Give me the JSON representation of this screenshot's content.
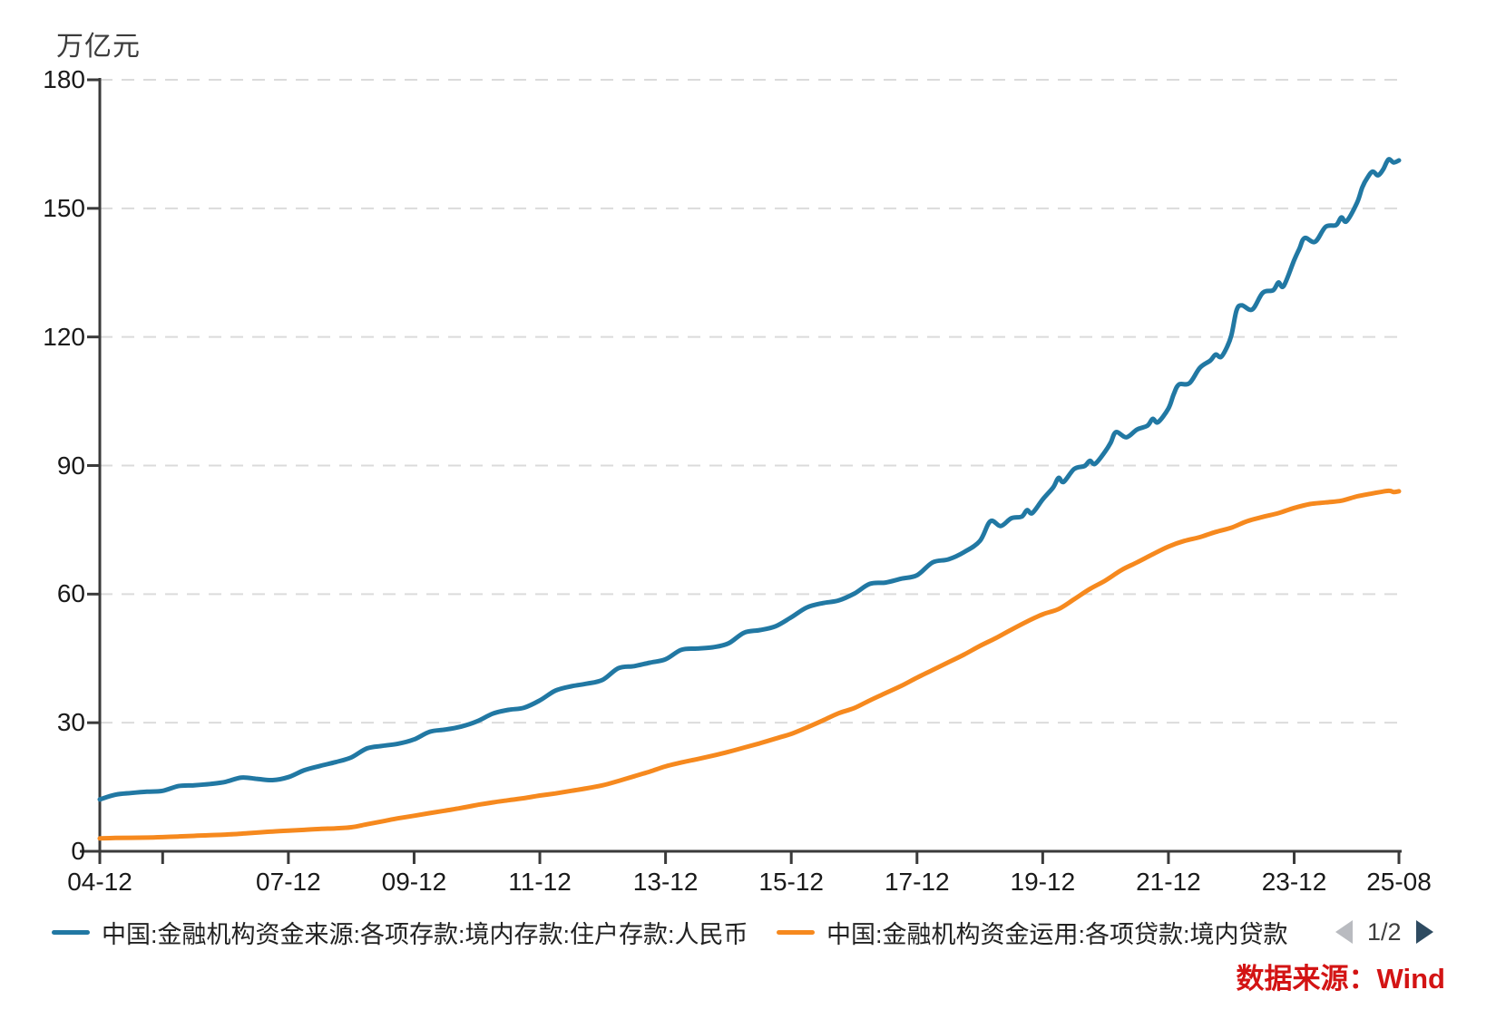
{
  "unit_label": "万亿元",
  "source_note": "数据来源：Wind",
  "pagination": {
    "label": "1/2",
    "prev_icon": "left-triangle-icon",
    "next_icon": "right-triangle-icon"
  },
  "colors": {
    "series_deposits": "#2178a3",
    "series_loans": "#f6891e",
    "grid": "#dbdbdb",
    "axis": "#3a3a3a",
    "tick_text": "#1a1a1a",
    "source_red": "#d31414",
    "pager_prev": "#b9bbc0",
    "pager_next": "#2e4b61"
  },
  "chart_data": {
    "type": "line",
    "title": "",
    "ylabel_unit": "万亿元",
    "ylim": [
      0,
      180
    ],
    "yticks": [
      0,
      30,
      60,
      90,
      120,
      150,
      180
    ],
    "grid": "dashed-horizontal",
    "legend_position": "bottom",
    "x_start": "04-12",
    "x_end": "25-08",
    "xticks": [
      {
        "t": "04-12",
        "label": "04-12"
      },
      {
        "t": "05-12",
        "label": ""
      },
      {
        "t": "07-12",
        "label": "07-12"
      },
      {
        "t": "09-12",
        "label": "09-12"
      },
      {
        "t": "11-12",
        "label": "11-12"
      },
      {
        "t": "13-12",
        "label": "13-12"
      },
      {
        "t": "15-12",
        "label": "15-12"
      },
      {
        "t": "17-12",
        "label": "17-12"
      },
      {
        "t": "19-12",
        "label": "19-12"
      },
      {
        "t": "21-12",
        "label": "21-12"
      },
      {
        "t": "23-12",
        "label": "23-12"
      },
      {
        "t": "25-08",
        "label": "25-08"
      }
    ],
    "series": [
      {
        "name": "中国:金融机构资金来源:各项存款:境内存款:住户存款:人民币",
        "color": "#2178a3",
        "points": [
          [
            "04-12",
            12.1
          ],
          [
            "05-03",
            13.2
          ],
          [
            "05-06",
            13.6
          ],
          [
            "05-09",
            13.9
          ],
          [
            "05-12",
            14.1
          ],
          [
            "06-03",
            15.2
          ],
          [
            "06-06",
            15.4
          ],
          [
            "06-09",
            15.7
          ],
          [
            "06-12",
            16.2
          ],
          [
            "07-03",
            17.2
          ],
          [
            "07-06",
            16.9
          ],
          [
            "07-09",
            16.6
          ],
          [
            "07-12",
            17.3
          ],
          [
            "08-03",
            18.9
          ],
          [
            "08-06",
            19.9
          ],
          [
            "08-09",
            20.8
          ],
          [
            "08-12",
            21.9
          ],
          [
            "09-03",
            24.0
          ],
          [
            "09-06",
            24.6
          ],
          [
            "09-09",
            25.1
          ],
          [
            "09-12",
            26.1
          ],
          [
            "10-03",
            27.9
          ],
          [
            "10-06",
            28.4
          ],
          [
            "10-09",
            29.1
          ],
          [
            "10-12",
            30.3
          ],
          [
            "11-03",
            32.1
          ],
          [
            "11-06",
            33.0
          ],
          [
            "11-09",
            33.5
          ],
          [
            "11-12",
            35.2
          ],
          [
            "12-03",
            37.5
          ],
          [
            "12-06",
            38.5
          ],
          [
            "12-09",
            39.1
          ],
          [
            "12-12",
            40.0
          ],
          [
            "13-03",
            42.7
          ],
          [
            "13-06",
            43.2
          ],
          [
            "13-09",
            44.0
          ],
          [
            "13-12",
            44.8
          ],
          [
            "14-03",
            47.0
          ],
          [
            "14-06",
            47.3
          ],
          [
            "14-09",
            47.6
          ],
          [
            "14-12",
            48.5
          ],
          [
            "15-03",
            51.0
          ],
          [
            "15-06",
            51.6
          ],
          [
            "15-09",
            52.5
          ],
          [
            "15-12",
            54.6
          ],
          [
            "16-03",
            56.9
          ],
          [
            "16-06",
            57.9
          ],
          [
            "16-09",
            58.5
          ],
          [
            "16-12",
            60.1
          ],
          [
            "17-03",
            62.4
          ],
          [
            "17-06",
            62.7
          ],
          [
            "17-09",
            63.6
          ],
          [
            "17-12",
            64.4
          ],
          [
            "18-03",
            67.4
          ],
          [
            "18-06",
            68.1
          ],
          [
            "18-09",
            69.8
          ],
          [
            "18-12",
            72.4
          ],
          [
            "19-02",
            77.0
          ],
          [
            "19-04",
            75.9
          ],
          [
            "19-06",
            77.7
          ],
          [
            "19-08",
            78.1
          ],
          [
            "19-09",
            79.6
          ],
          [
            "19-10",
            78.9
          ],
          [
            "19-12",
            82.1
          ],
          [
            "20-02",
            84.9
          ],
          [
            "20-03",
            87.1
          ],
          [
            "20-04",
            86.2
          ],
          [
            "20-06",
            89.2
          ],
          [
            "20-08",
            89.9
          ],
          [
            "20-09",
            91.1
          ],
          [
            "20-10",
            90.4
          ],
          [
            "20-12",
            93.4
          ],
          [
            "21-01",
            95.4
          ],
          [
            "21-02",
            97.8
          ],
          [
            "21-04",
            96.6
          ],
          [
            "21-06",
            98.4
          ],
          [
            "21-08",
            99.3
          ],
          [
            "21-09",
            100.9
          ],
          [
            "21-10",
            100.1
          ],
          [
            "21-12",
            103.3
          ],
          [
            "22-01",
            106.6
          ],
          [
            "22-02",
            108.9
          ],
          [
            "22-04",
            109.2
          ],
          [
            "22-06",
            112.8
          ],
          [
            "22-08",
            114.5
          ],
          [
            "22-09",
            115.9
          ],
          [
            "22-10",
            115.3
          ],
          [
            "22-11",
            117.2
          ],
          [
            "22-12",
            120.3
          ],
          [
            "23-01",
            126.2
          ],
          [
            "23-02",
            127.4
          ],
          [
            "23-04",
            126.4
          ],
          [
            "23-06",
            130.3
          ],
          [
            "23-08",
            130.9
          ],
          [
            "23-09",
            132.7
          ],
          [
            "23-10",
            131.9
          ],
          [
            "23-12",
            137.9
          ],
          [
            "24-01",
            140.6
          ],
          [
            "24-02",
            143.1
          ],
          [
            "24-04",
            142.2
          ],
          [
            "24-06",
            145.7
          ],
          [
            "24-08",
            146.1
          ],
          [
            "24-09",
            147.9
          ],
          [
            "24-10",
            147.0
          ],
          [
            "24-12",
            151.3
          ],
          [
            "25-01",
            154.9
          ],
          [
            "25-02",
            157.2
          ],
          [
            "25-03",
            158.6
          ],
          [
            "25-04",
            157.7
          ],
          [
            "25-05",
            159.1
          ],
          [
            "25-06",
            161.4
          ],
          [
            "25-07",
            160.7
          ],
          [
            "25-08",
            161.2
          ]
        ]
      },
      {
        "name": "中国:金融机构资金运用:各项贷款:境内贷款",
        "color": "#f6891e",
        "points": [
          [
            "04-12",
            3.0
          ],
          [
            "05-03",
            3.1
          ],
          [
            "05-06",
            3.15
          ],
          [
            "05-09",
            3.2
          ],
          [
            "05-12",
            3.3
          ],
          [
            "06-03",
            3.45
          ],
          [
            "06-06",
            3.6
          ],
          [
            "06-09",
            3.75
          ],
          [
            "06-12",
            3.9
          ],
          [
            "07-03",
            4.1
          ],
          [
            "07-06",
            4.35
          ],
          [
            "07-09",
            4.6
          ],
          [
            "07-12",
            4.8
          ],
          [
            "08-03",
            5.0
          ],
          [
            "08-06",
            5.2
          ],
          [
            "08-09",
            5.35
          ],
          [
            "08-12",
            5.6
          ],
          [
            "09-03",
            6.3
          ],
          [
            "09-06",
            7.0
          ],
          [
            "09-09",
            7.7
          ],
          [
            "09-12",
            8.3
          ],
          [
            "10-03",
            8.9
          ],
          [
            "10-06",
            9.5
          ],
          [
            "10-09",
            10.1
          ],
          [
            "10-12",
            10.8
          ],
          [
            "11-03",
            11.4
          ],
          [
            "11-06",
            11.9
          ],
          [
            "11-09",
            12.4
          ],
          [
            "11-12",
            13.0
          ],
          [
            "12-03",
            13.5
          ],
          [
            "12-06",
            14.1
          ],
          [
            "12-09",
            14.7
          ],
          [
            "12-12",
            15.4
          ],
          [
            "13-03",
            16.4
          ],
          [
            "13-06",
            17.5
          ],
          [
            "13-09",
            18.6
          ],
          [
            "13-12",
            19.8
          ],
          [
            "14-03",
            20.7
          ],
          [
            "14-06",
            21.5
          ],
          [
            "14-09",
            22.3
          ],
          [
            "14-12",
            23.2
          ],
          [
            "15-03",
            24.2
          ],
          [
            "15-06",
            25.2
          ],
          [
            "15-09",
            26.3
          ],
          [
            "15-12",
            27.4
          ],
          [
            "16-03",
            28.9
          ],
          [
            "16-06",
            30.5
          ],
          [
            "16-09",
            32.2
          ],
          [
            "16-12",
            33.4
          ],
          [
            "17-03",
            35.2
          ],
          [
            "17-06",
            36.9
          ],
          [
            "17-09",
            38.6
          ],
          [
            "17-12",
            40.5
          ],
          [
            "18-03",
            42.3
          ],
          [
            "18-06",
            44.1
          ],
          [
            "18-09",
            45.9
          ],
          [
            "18-12",
            47.9
          ],
          [
            "19-03",
            49.7
          ],
          [
            "19-06",
            51.7
          ],
          [
            "19-09",
            53.6
          ],
          [
            "19-12",
            55.3
          ],
          [
            "20-03",
            56.5
          ],
          [
            "20-06",
            58.8
          ],
          [
            "20-09",
            61.2
          ],
          [
            "20-12",
            63.2
          ],
          [
            "21-03",
            65.6
          ],
          [
            "21-06",
            67.4
          ],
          [
            "21-09",
            69.3
          ],
          [
            "21-12",
            71.1
          ],
          [
            "22-03",
            72.4
          ],
          [
            "22-06",
            73.3
          ],
          [
            "22-09",
            74.5
          ],
          [
            "22-12",
            75.5
          ],
          [
            "23-03",
            77.0
          ],
          [
            "23-06",
            78.0
          ],
          [
            "23-09",
            78.9
          ],
          [
            "23-12",
            80.1
          ],
          [
            "24-03",
            81.0
          ],
          [
            "24-06",
            81.4
          ],
          [
            "24-09",
            81.8
          ],
          [
            "24-12",
            82.8
          ],
          [
            "25-03",
            83.5
          ],
          [
            "25-06",
            84.1
          ],
          [
            "25-07",
            83.8
          ],
          [
            "25-08",
            84.0
          ]
        ]
      }
    ]
  }
}
